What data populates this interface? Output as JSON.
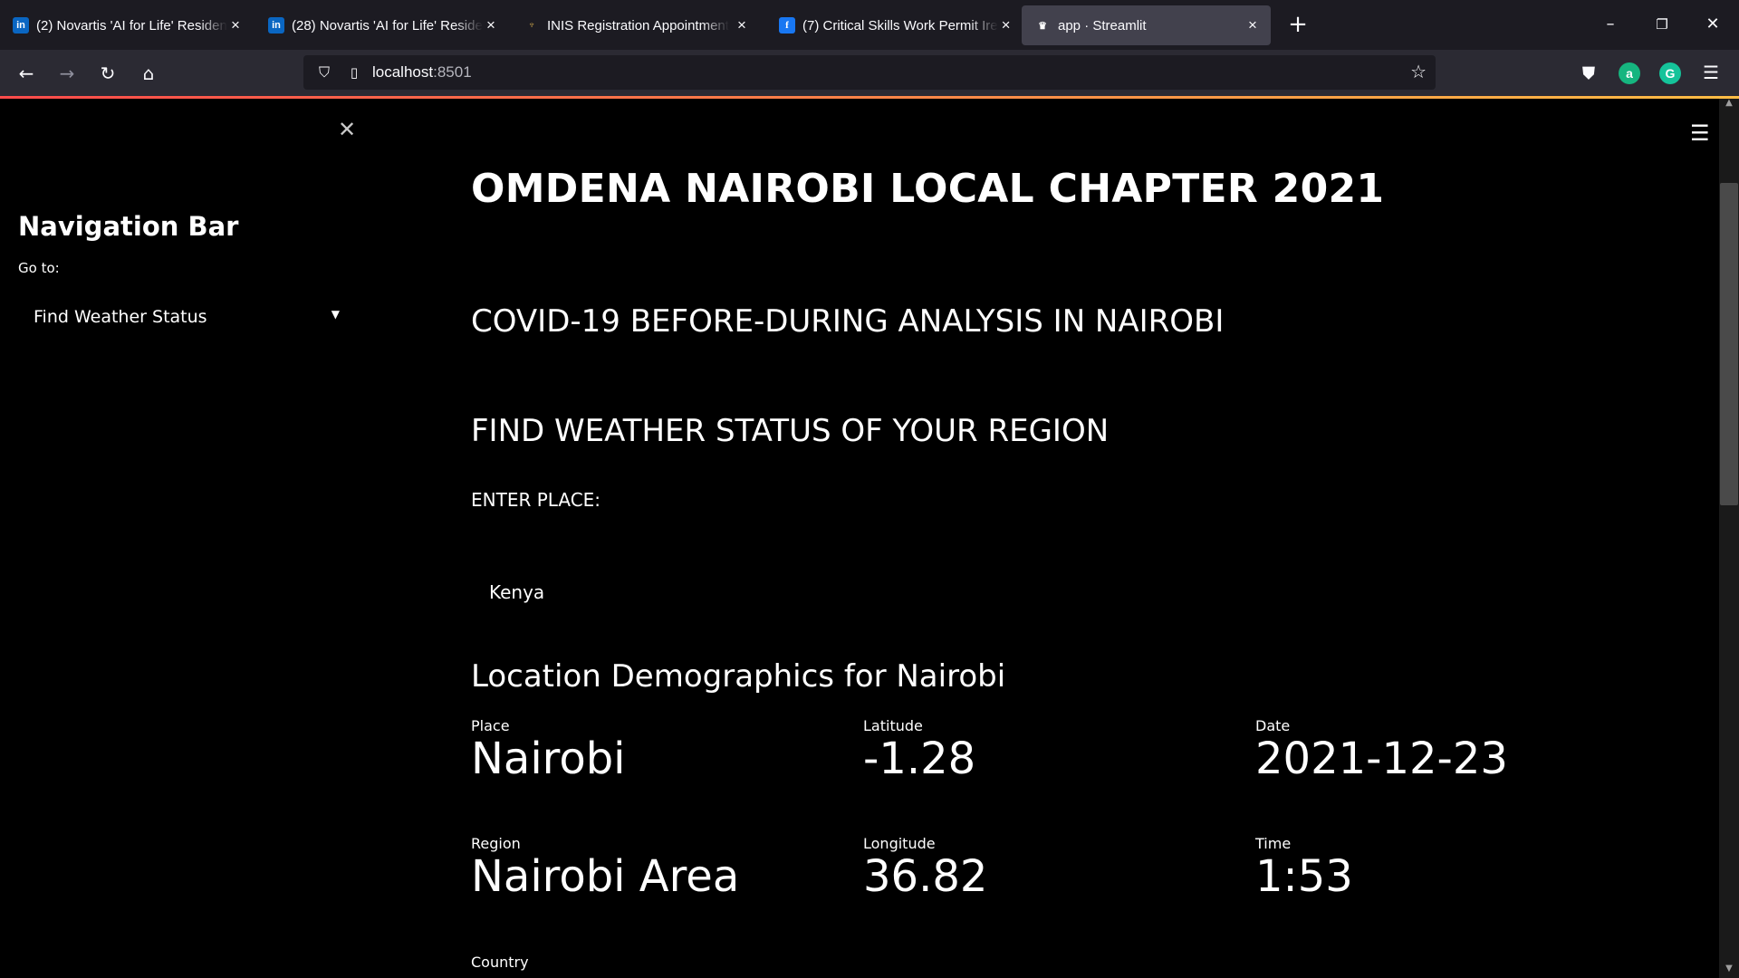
{
  "browser": {
    "tabs": [
      {
        "title": "(2) Novartis 'AI for Life' Residen",
        "favicon": "in",
        "active": false
      },
      {
        "title": "(28) Novartis 'AI for Life' Reside",
        "favicon": "in",
        "active": false
      },
      {
        "title": "INIS Registration Appointment",
        "favicon": "harp",
        "active": false
      },
      {
        "title": "(7) Critical Skills Work Permit Ire",
        "favicon": "f",
        "active": false
      },
      {
        "title": "app · Streamlit",
        "favicon": "streamlit-crown",
        "active": true
      }
    ],
    "new_tab_symbol": "+",
    "url_host": "localhost",
    "url_port": ":8501"
  },
  "sidebar": {
    "title": "Navigation Bar",
    "goto_label": "Go to:",
    "selected_page": "Find Weather Status"
  },
  "main": {
    "title": "OMDENA NAIROBI LOCAL CHAPTER 2021",
    "subtitle": "COVID-19 BEFORE-DURING ANALYSIS IN NAIROBI",
    "section_heading": "FIND WEATHER STATUS OF YOUR REGION",
    "place_input_label": "ENTER PLACE:",
    "place_input_value": "Kenya",
    "demographics_heading": "Location Demographics for Nairobi",
    "metrics": {
      "place": {
        "label": "Place",
        "value": "Nairobi"
      },
      "latitude": {
        "label": "Latitude",
        "value": "-1.28"
      },
      "date": {
        "label": "Date",
        "value": "2021-12-23"
      },
      "region": {
        "label": "Region",
        "value": "Nairobi Area"
      },
      "longitude": {
        "label": "Longitude",
        "value": "36.82"
      },
      "time": {
        "label": "Time",
        "value": "1:53"
      },
      "country": {
        "label": "Country"
      }
    }
  },
  "colors": {
    "accent_gradient_start": "#ff4b4b",
    "accent_gradient_end": "#ffbd45",
    "background": "#000000"
  }
}
